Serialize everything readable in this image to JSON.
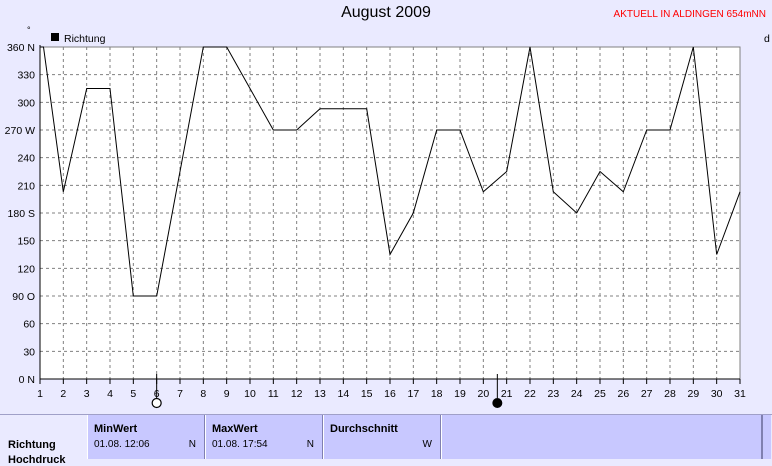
{
  "title": "August 2009",
  "corner_text": "AKTUELL IN ALDINGEN 654mNN",
  "legend": "Richtung",
  "chart_data": {
    "type": "line",
    "title": "August 2009",
    "x": [
      1,
      1.15,
      2,
      3,
      4,
      5,
      6,
      7,
      8,
      9,
      10,
      11,
      12,
      13,
      14,
      15,
      16,
      17,
      18,
      19,
      20,
      21,
      22,
      23,
      24,
      25,
      26,
      27,
      28,
      29,
      30,
      31
    ],
    "series": [
      {
        "name": "Richtung",
        "values": [
          360,
          360,
          203,
          315,
          315,
          90,
          90,
          225,
          360,
          360,
          315,
          270,
          270,
          293,
          293,
          293,
          135,
          180,
          270,
          270,
          203,
          225,
          360,
          203,
          180,
          225,
          203,
          270,
          270,
          360,
          135,
          203
        ]
      }
    ],
    "xlim": [
      1,
      31
    ],
    "ylim": [
      0,
      360
    ],
    "x_ticks": [
      "1",
      "2",
      "3",
      "4",
      "5",
      "6",
      "7",
      "8",
      "9",
      "10",
      "11",
      "12",
      "13",
      "14",
      "15",
      "16",
      "17",
      "18",
      "19",
      "20",
      "21",
      "22",
      "23",
      "24",
      "25",
      "26",
      "27",
      "28",
      "29",
      "30",
      "31"
    ],
    "y_ticks": [
      "0 N",
      "30",
      "60",
      "90 O",
      "120",
      "150",
      "180 S",
      "210",
      "240",
      "270 W",
      "300",
      "330",
      "360 N"
    ],
    "y_tick_values": [
      0,
      30,
      60,
      90,
      120,
      150,
      180,
      210,
      240,
      270,
      300,
      330,
      360
    ],
    "grid": true,
    "moon_markers": [
      {
        "x": 6,
        "phase": "full"
      },
      {
        "x": 20.6,
        "phase": "new"
      }
    ],
    "right_edge_label": "d"
  },
  "table": {
    "row_label": "Richtung",
    "row_label2": "Hochdruck",
    "min": {
      "header": "MinWert",
      "value": "01.08.  12:06",
      "dir": "N"
    },
    "max": {
      "header": "MaxWert",
      "value": "01.08.  17:54",
      "dir": "N"
    },
    "avg": {
      "header": "Durchschnitt",
      "value": "",
      "dir": "W"
    }
  }
}
